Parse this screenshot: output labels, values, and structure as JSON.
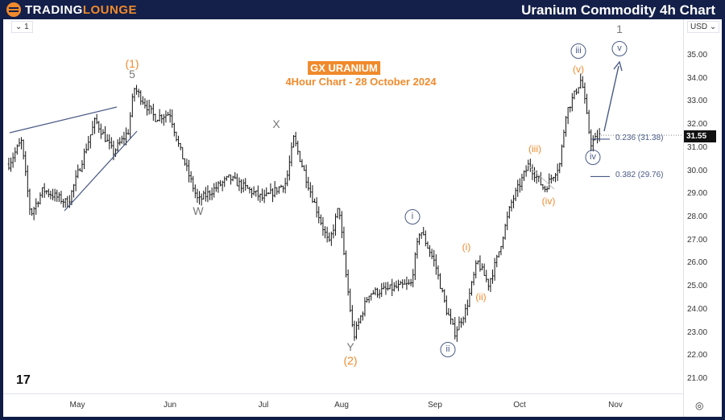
{
  "header": {
    "brand_a": "TradingLounge",
    "title": "Uranium Commodity 4h Chart"
  },
  "toolbar": {
    "interval": "1",
    "currency": "USD"
  },
  "chart_data": {
    "type": "ohlc",
    "title": "GX URANIUM",
    "subtitle": "4Hour Chart - 28 October 2024",
    "ylim": [
      20.5,
      36
    ],
    "y_ticks": [
      "35.00",
      "34.00",
      "33.00",
      "32.00",
      "31.00",
      "30.00",
      "29.00",
      "28.00",
      "27.00",
      "26.00",
      "25.00",
      "24.00",
      "23.00",
      "22.00",
      "21.00"
    ],
    "x_ticks": [
      "May",
      "Jun",
      "Jul",
      "Aug",
      "Sep",
      "Oct",
      "Nov"
    ],
    "last_price": "31.55",
    "path": [
      [
        "2024-04-09",
        30.3
      ],
      [
        "2024-04-13",
        31.3
      ],
      [
        "2024-04-16",
        28.1
      ],
      [
        "2024-04-20",
        29.2
      ],
      [
        "2024-04-28",
        28.6
      ],
      [
        "2024-05-07",
        32.2
      ],
      [
        "2024-05-13",
        30.8
      ],
      [
        "2024-05-18",
        31.7
      ],
      [
        "2024-05-20",
        33.6
      ],
      [
        "2024-05-27",
        32.3
      ],
      [
        "2024-06-01",
        32.5
      ],
      [
        "2024-06-04",
        31.0
      ],
      [
        "2024-06-10",
        28.7
      ],
      [
        "2024-06-20",
        29.7
      ],
      [
        "2024-07-01",
        28.8
      ],
      [
        "2024-07-10",
        29.5
      ],
      [
        "2024-07-13",
        31.4
      ],
      [
        "2024-07-20",
        29.0
      ],
      [
        "2024-07-27",
        26.8
      ],
      [
        "2024-07-31",
        28.5
      ],
      [
        "2024-08-02",
        26.0
      ],
      [
        "2024-08-05",
        22.8
      ],
      [
        "2024-08-10",
        24.7
      ],
      [
        "2024-08-24",
        25.1
      ],
      [
        "2024-08-27",
        27.5
      ],
      [
        "2024-09-01",
        26.0
      ],
      [
        "2024-09-05",
        24.0
      ],
      [
        "2024-09-08",
        23.0
      ],
      [
        "2024-09-12",
        24.0
      ],
      [
        "2024-09-16",
        26.1
      ],
      [
        "2024-09-20",
        25.1
      ],
      [
        "2024-09-23",
        26.2
      ],
      [
        "2024-09-28",
        28.6
      ],
      [
        "2024-10-04",
        30.3
      ],
      [
        "2024-10-09",
        29.2
      ],
      [
        "2024-10-14",
        30.3
      ],
      [
        "2024-10-16",
        32.5
      ],
      [
        "2024-10-21",
        34.0
      ],
      [
        "2024-10-24",
        31.2
      ],
      [
        "2024-10-27",
        31.55
      ]
    ],
    "fib_levels": [
      {
        "ratio": "0.236",
        "price": 31.38,
        "label": "0.236 (31.38)"
      },
      {
        "ratio": "0.382",
        "price": 29.76,
        "label": "0.382 (29.76)"
      }
    ],
    "wave_labels": {
      "w1": "(1)",
      "w5": "5",
      "W": "W",
      "X": "X",
      "Y": "Y",
      "w2": "(2)",
      "i": "i",
      "ii": "ii",
      "pi": "(i)",
      "pii": "(ii)",
      "piii": "(iii)",
      "piv": "(iv)",
      "pv": "(v)",
      "iii": "iii",
      "iv": "iv",
      "v": "v",
      "one": "1"
    },
    "colors": {
      "bars": "#111111",
      "orange": "#f08a2c",
      "wave_blue": "#4a5a86",
      "header": "#14204a"
    }
  }
}
